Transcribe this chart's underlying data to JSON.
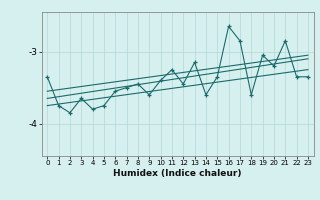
{
  "xlabel": "Humidex (Indice chaleur)",
  "ylabel": "",
  "bg_color": "#d6f0ef",
  "grid_color": "#b8dbd9",
  "line_color": "#1a6b6b",
  "xlim": [
    -0.5,
    23.5
  ],
  "ylim": [
    -4.45,
    -2.45
  ],
  "yticks": [
    -4,
    -3
  ],
  "xticks": [
    0,
    1,
    2,
    3,
    4,
    5,
    6,
    7,
    8,
    9,
    10,
    11,
    12,
    13,
    14,
    15,
    16,
    17,
    18,
    19,
    20,
    21,
    22,
    23
  ],
  "main_data_x": [
    0,
    1,
    2,
    3,
    4,
    5,
    6,
    7,
    8,
    9,
    10,
    11,
    12,
    13,
    14,
    15,
    16,
    17,
    18,
    19,
    20,
    21,
    22,
    23
  ],
  "main_data_y": [
    -3.35,
    -3.75,
    -3.85,
    -3.65,
    -3.8,
    -3.75,
    -3.55,
    -3.5,
    -3.45,
    -3.6,
    -3.4,
    -3.25,
    -3.45,
    -3.15,
    -3.6,
    -3.35,
    -2.65,
    -2.85,
    -3.6,
    -3.05,
    -3.2,
    -2.85,
    -3.35,
    -3.35
  ],
  "trend1_x": [
    0,
    23
  ],
  "trend1_y": [
    -3.75,
    -3.25
  ],
  "trend2_x": [
    0,
    23
  ],
  "trend2_y": [
    -3.65,
    -3.1
  ],
  "trend3_x": [
    0,
    23
  ],
  "trend3_y": [
    -3.55,
    -3.05
  ]
}
